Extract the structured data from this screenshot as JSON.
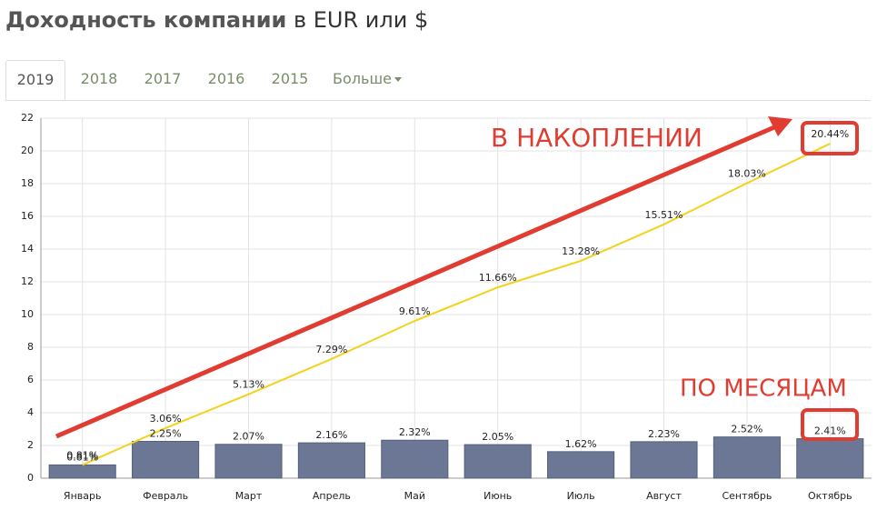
{
  "header": {
    "title_bold": "Доходность компании",
    "title_rest": "в EUR или $"
  },
  "tabs": [
    "2019",
    "2018",
    "2017",
    "2016",
    "2015",
    "Больше"
  ],
  "chart_data": {
    "type": "bar",
    "categories": [
      "Январь",
      "Февраль",
      "Март",
      "Апрель",
      "Май",
      "Июнь",
      "Июль",
      "Август",
      "Сентябрь",
      "Октябрь"
    ],
    "series": [
      {
        "type": "bar",
        "color": "#6b7794",
        "values": [
          0.81,
          2.25,
          2.07,
          2.16,
          2.32,
          2.05,
          1.62,
          2.23,
          2.52,
          2.41
        ],
        "value_labels": [
          "0.81%",
          "2.25%",
          "2.07%",
          "2.16%",
          "2.32%",
          "2.05%",
          "1.62%",
          "2.23%",
          "2.52%",
          "2.41%"
        ]
      },
      {
        "type": "line",
        "color": "#f2d21b",
        "values": [
          0.81,
          3.06,
          5.13,
          7.29,
          9.61,
          11.66,
          13.28,
          15.51,
          18.03,
          20.44
        ],
        "value_labels": [
          "0.81%",
          "3.06%",
          "5.13%",
          "7.29%",
          "9.61%",
          "11.66%",
          "13.28%",
          "15.51%",
          "18.03%",
          "20.44%"
        ]
      }
    ],
    "ylim": [
      0,
      22
    ],
    "yticks": [
      0,
      2,
      4,
      6,
      8,
      10,
      12,
      14,
      16,
      18,
      20,
      22
    ],
    "grid": true,
    "annotations": [
      "В НАКОПЛЕНИИ",
      "ПО МЕСЯЦАМ"
    ]
  }
}
